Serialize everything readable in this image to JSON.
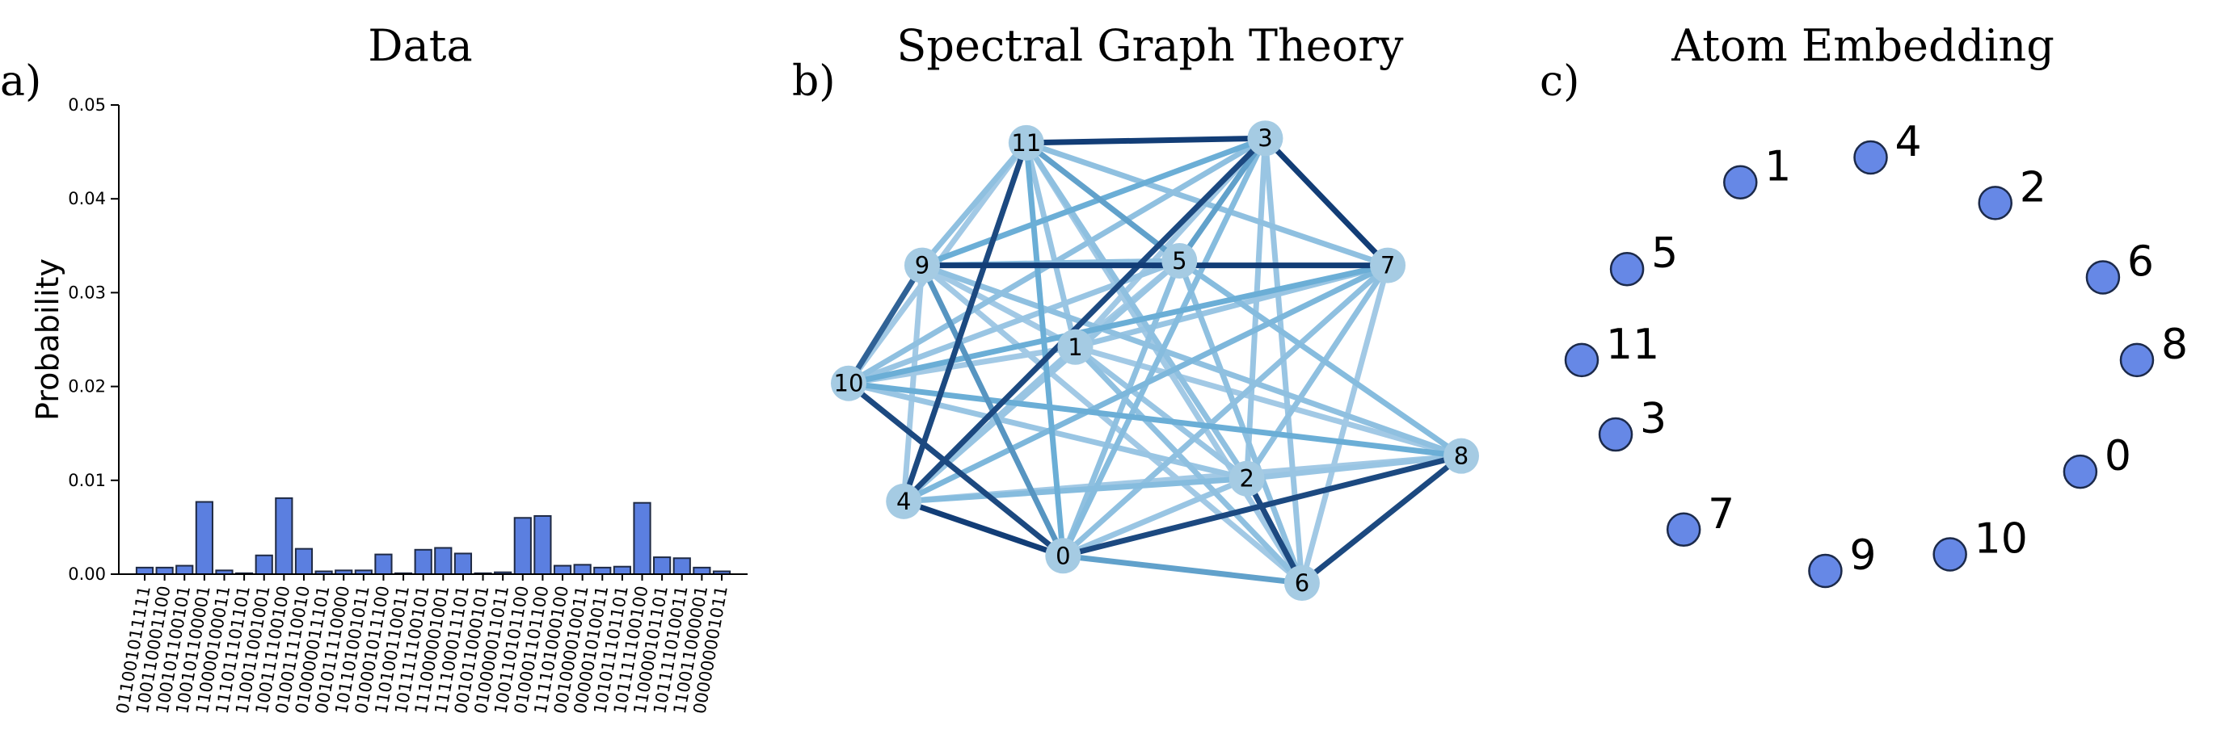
{
  "figure": {
    "panels": [
      {
        "letter": "a)",
        "title": "Data"
      },
      {
        "letter": "b)",
        "title": "Spectral Graph Theory"
      },
      {
        "letter": "c)",
        "title": "Atom Embedding"
      }
    ]
  },
  "colors": {
    "bar_fill": "#5b7fe0",
    "bar_edge": "#1f2a44",
    "graph_node": "#a5cbe3",
    "atom_fill": "#6688e6",
    "atom_edge": "#1c2a4a",
    "edge_light": "#c6dbef",
    "edge_mid": "#6baed6",
    "edge_dark": "#08306b"
  },
  "chart_data": [
    {
      "type": "bar",
      "title": "Data",
      "xlabel": "",
      "ylabel": "Probability",
      "ylim": [
        0,
        0.05
      ],
      "yticks": [
        "0.00",
        "0.01",
        "0.02",
        "0.03",
        "0.04",
        "0.05"
      ],
      "categories": [
        "011001011111",
        "100110001100",
        "100101100101",
        "100101100001",
        "110000100011",
        "111011101101",
        "110011001001",
        "100111100100",
        "010011110010",
        "010000011101",
        "001011110000",
        "101101001011",
        "010001011100",
        "110100110011",
        "101111100101",
        "111000001001",
        "111100011101",
        "001011000101",
        "010000011011",
        "100110101100",
        "010001101100",
        "111101000100",
        "001000010011",
        "000001010011",
        "101011101101",
        "101111100100",
        "110000101101",
        "101111010011",
        "110011000001",
        "000000001011"
      ],
      "values": [
        0.0007,
        0.0007,
        0.0009,
        0.0077,
        0.0004,
        0.0001,
        0.002,
        0.0081,
        0.0027,
        0.0003,
        0.0004,
        0.0004,
        0.0021,
        0.0001,
        0.0026,
        0.0028,
        0.0022,
        0.0001,
        0.0002,
        0.006,
        0.0062,
        0.0009,
        0.001,
        0.0007,
        0.0008,
        0.0076,
        0.0018,
        0.0017,
        0.0007,
        0.0003
      ]
    },
    {
      "type": "graph",
      "title": "Spectral Graph Theory",
      "nodes": [
        {
          "id": "0",
          "x": 0.35,
          "y": 0.06
        },
        {
          "id": "1",
          "x": 0.37,
          "y": 0.52
        },
        {
          "id": "2",
          "x": 0.65,
          "y": 0.23
        },
        {
          "id": "3",
          "x": 0.68,
          "y": 0.98
        },
        {
          "id": "4",
          "x": 0.09,
          "y": 0.18
        },
        {
          "id": "5",
          "x": 0.54,
          "y": 0.71
        },
        {
          "id": "6",
          "x": 0.74,
          "y": 0.0
        },
        {
          "id": "7",
          "x": 0.88,
          "y": 0.7
        },
        {
          "id": "8",
          "x": 1.0,
          "y": 0.28
        },
        {
          "id": "9",
          "x": 0.12,
          "y": 0.7
        },
        {
          "id": "10",
          "x": 0.0,
          "y": 0.44
        },
        {
          "id": "11",
          "x": 0.29,
          "y": 0.97
        }
      ],
      "edges": [
        [
          "11",
          "3",
          0.95
        ],
        [
          "3",
          "7",
          0.95
        ],
        [
          "9",
          "7",
          0.95
        ],
        [
          "10",
          "9",
          0.8
        ],
        [
          "10",
          "0",
          0.9
        ],
        [
          "4",
          "11",
          0.9
        ],
        [
          "4",
          "3",
          0.9
        ],
        [
          "4",
          "0",
          0.95
        ],
        [
          "0",
          "8",
          0.9
        ],
        [
          "6",
          "8",
          0.9
        ],
        [
          "2",
          "6",
          0.9
        ],
        [
          "0",
          "6",
          0.55
        ],
        [
          "10",
          "8",
          0.5
        ],
        [
          "11",
          "5",
          0.55
        ],
        [
          "9",
          "3",
          0.5
        ],
        [
          "9",
          "0",
          0.6
        ],
        [
          "5",
          "3",
          0.55
        ],
        [
          "10",
          "7",
          0.5
        ],
        [
          "11",
          "0",
          0.5
        ],
        [
          "5",
          "8",
          0.35
        ],
        [
          "11",
          "7",
          0.3
        ],
        [
          "9",
          "8",
          0.3
        ],
        [
          "10",
          "2",
          0.25
        ],
        [
          "4",
          "7",
          0.4
        ],
        [
          "1",
          "6",
          0.3
        ],
        [
          "0",
          "7",
          0.3
        ],
        [
          "3",
          "0",
          0.35
        ],
        [
          "11",
          "2",
          0.3
        ],
        [
          "4",
          "9",
          0.2
        ],
        [
          "4",
          "5",
          0.25
        ],
        [
          "10",
          "3",
          0.3
        ],
        [
          "1",
          "11",
          0.25
        ],
        [
          "9",
          "1",
          0.2
        ],
        [
          "1",
          "5",
          0.2
        ],
        [
          "2",
          "8",
          0.25
        ],
        [
          "1",
          "8",
          0.2
        ],
        [
          "10",
          "5",
          0.25
        ],
        [
          "6",
          "5",
          0.3
        ],
        [
          "3",
          "6",
          0.25
        ],
        [
          "6",
          "7",
          0.2
        ],
        [
          "1",
          "7",
          0.25
        ],
        [
          "1",
          "3",
          0.2
        ],
        [
          "0",
          "5",
          0.3
        ],
        [
          "11",
          "6",
          0.2
        ],
        [
          "9",
          "6",
          0.2
        ],
        [
          "10",
          "1",
          0.2
        ],
        [
          "4",
          "2",
          0.35
        ],
        [
          "4",
          "8",
          0.2
        ],
        [
          "2",
          "7",
          0.3
        ],
        [
          "2",
          "3",
          0.25
        ],
        [
          "0",
          "2",
          0.25
        ],
        [
          "4",
          "1",
          0.25
        ],
        [
          "9",
          "5",
          0.3
        ],
        [
          "1",
          "2",
          0.25
        ],
        [
          "11",
          "9",
          0.3
        ],
        [
          "10",
          "11",
          0.2
        ]
      ]
    },
    {
      "type": "scatter",
      "title": "Atom Embedding",
      "points": [
        {
          "label": "0",
          "x": 0.88,
          "y": 0.24
        },
        {
          "label": "1",
          "x": 0.28,
          "y": 0.94
        },
        {
          "label": "2",
          "x": 0.73,
          "y": 0.89
        },
        {
          "label": "3",
          "x": 0.06,
          "y": 0.33
        },
        {
          "label": "4",
          "x": 0.51,
          "y": 1.0
        },
        {
          "label": "5",
          "x": 0.08,
          "y": 0.73
        },
        {
          "label": "6",
          "x": 0.92,
          "y": 0.71
        },
        {
          "label": "7",
          "x": 0.18,
          "y": 0.1
        },
        {
          "label": "8",
          "x": 0.98,
          "y": 0.51
        },
        {
          "label": "9",
          "x": 0.43,
          "y": 0.0
        },
        {
          "label": "10",
          "x": 0.65,
          "y": 0.04
        },
        {
          "label": "11",
          "x": 0.0,
          "y": 0.51
        }
      ]
    }
  ]
}
